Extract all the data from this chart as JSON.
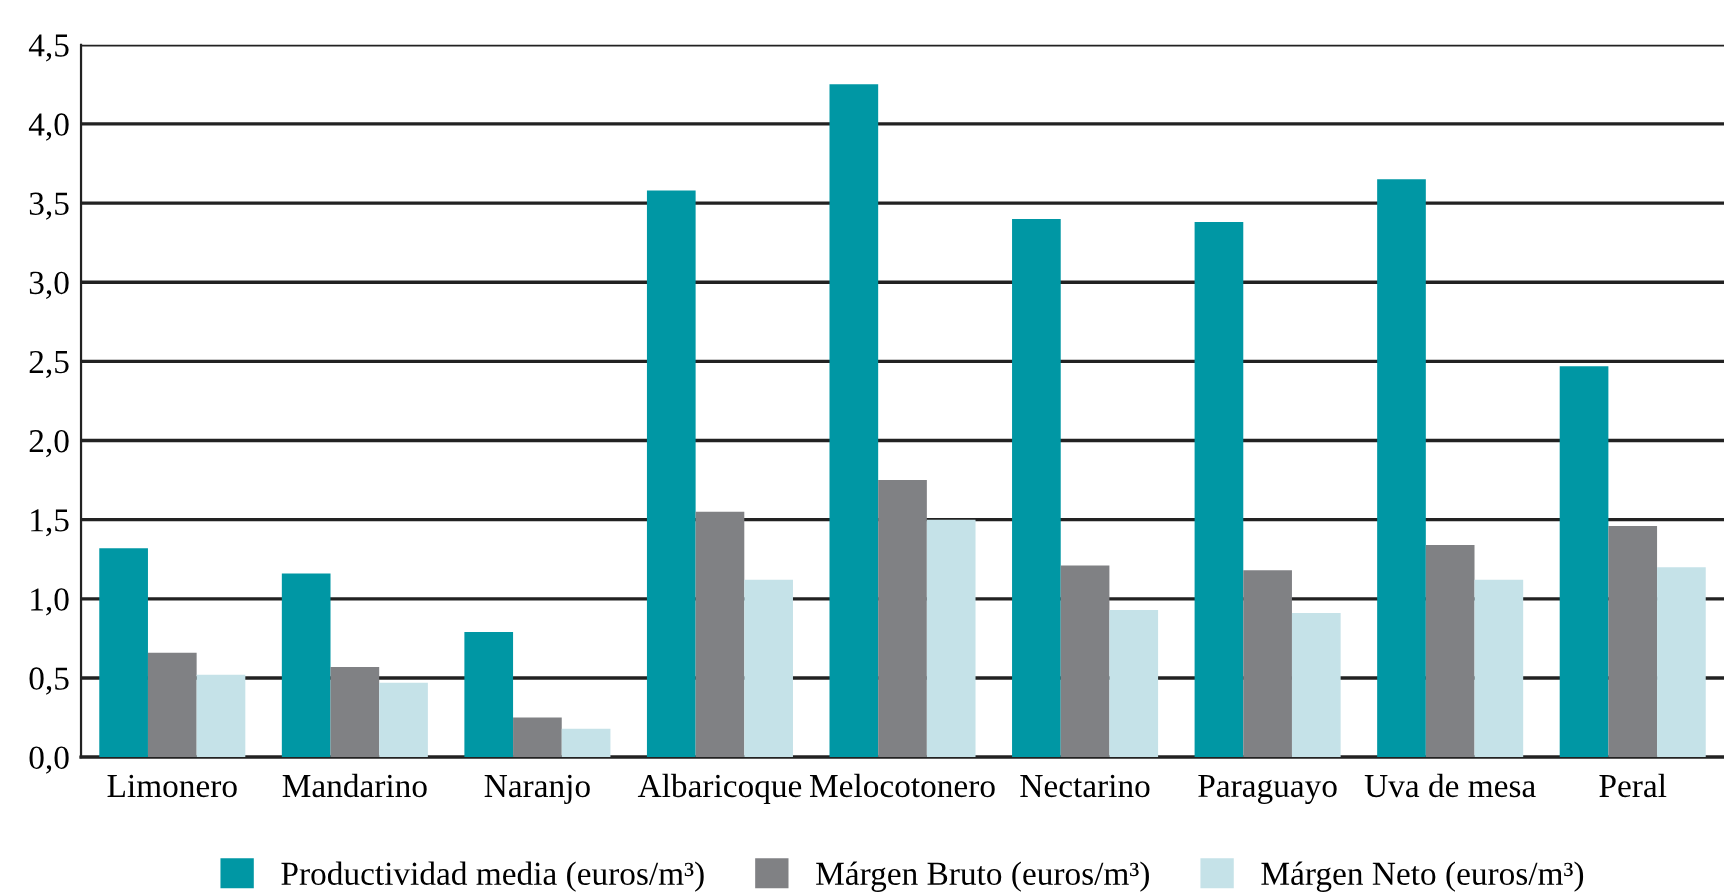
{
  "chart_data": {
    "type": "bar",
    "categories": [
      "Limonero",
      "Mandarino",
      "Naranjo",
      "Albaricoque",
      "Melocotonero",
      "Nectarino",
      "Paraguayo",
      "Uva de mesa",
      "Peral"
    ],
    "series": [
      {
        "name": "Productividad media (euros/m³)",
        "color": "#0097a4",
        "values": [
          1.32,
          1.16,
          0.79,
          3.58,
          4.25,
          3.4,
          3.38,
          3.65,
          2.47
        ]
      },
      {
        "name": "Márgen Bruto (euros/m³)",
        "color": "#808184",
        "values": [
          0.66,
          0.57,
          0.25,
          1.55,
          1.75,
          1.21,
          1.18,
          1.34,
          1.46
        ]
      },
      {
        "name": "Márgen Neto (euros/m³)",
        "color": "#c5e2e8",
        "values": [
          0.52,
          0.47,
          0.18,
          1.12,
          1.5,
          0.93,
          0.91,
          1.12,
          1.2
        ]
      }
    ],
    "ylim": [
      0,
      4.5
    ],
    "yticks": [
      {
        "value": 0,
        "label": "0,0"
      },
      {
        "value": 0.5,
        "label": "0,5"
      },
      {
        "value": 1,
        "label": "1,0"
      },
      {
        "value": 1.5,
        "label": "1,5"
      },
      {
        "value": 2,
        "label": "2,0"
      },
      {
        "value": 2.5,
        "label": "2,5"
      },
      {
        "value": 3,
        "label": "3,0"
      },
      {
        "value": 3.5,
        "label": "3,5"
      },
      {
        "value": 4,
        "label": "4,0"
      },
      {
        "value": 4.5,
        "label": "4,5"
      }
    ],
    "grid": "y",
    "legend": "bottom"
  }
}
